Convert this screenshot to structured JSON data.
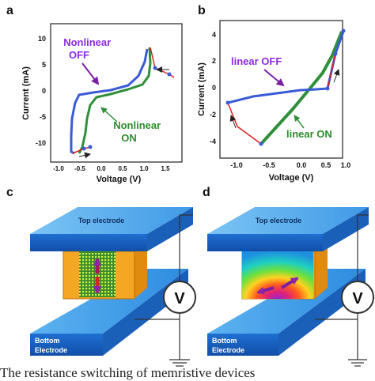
{
  "panels": {
    "a": {
      "letter": "a",
      "ylabel": "Current (mA)",
      "xlabel": "Voltage (V)",
      "yticks": [
        "10",
        "5",
        "0",
        "-5",
        "-10"
      ],
      "xticks": [
        "-1.0",
        "-0.5",
        "0.0",
        "0.5",
        "1.0",
        "1.5"
      ],
      "label_off": [
        "Nonlinear",
        "OFF"
      ],
      "label_on": [
        "Nonlinear",
        "ON"
      ]
    },
    "b": {
      "letter": "b",
      "ylabel": "Current (mA)",
      "xlabel": "Voltage (V)",
      "yticks": [
        "4",
        "2",
        "0",
        "-2",
        "-4"
      ],
      "xticks": [
        "-1.0",
        "-0.5",
        "0.0",
        "0.5",
        "1.0"
      ],
      "label_off": "linear OFF",
      "label_on": "linear ON"
    },
    "c": {
      "letter": "c",
      "top_electrode": "Top electrode",
      "bottom_electrode": [
        "Bottom",
        "Electrode"
      ],
      "meter": "V"
    },
    "d": {
      "letter": "d",
      "top_electrode": "Top electrode",
      "bottom_electrode": [
        "Bottom",
        "Electrode"
      ],
      "meter": "V"
    }
  },
  "caption": "The resistance switching of memristive devices",
  "colors": {
    "off_label": "#8a2be2",
    "on_label": "#2e8b2e",
    "curve_off": "#3b5bd6",
    "curve_on": "#2f8f3a",
    "transition": "#e02020",
    "electrode": "#2e8fe0",
    "dielectric": "#f5a623"
  }
}
